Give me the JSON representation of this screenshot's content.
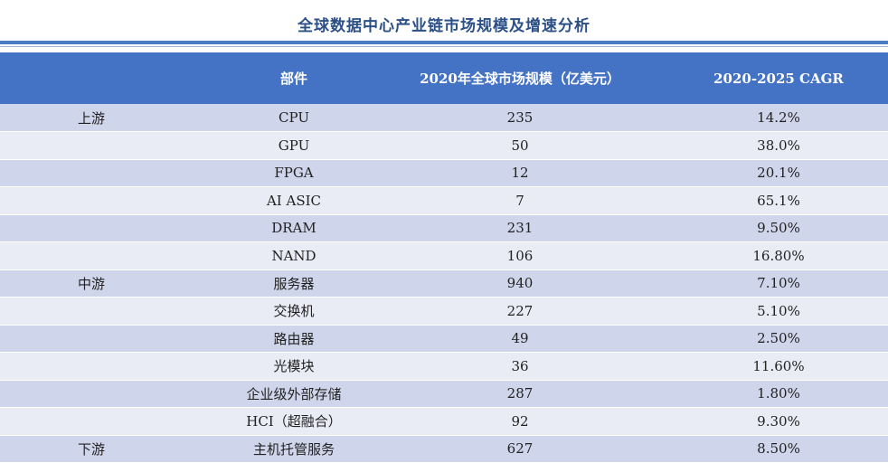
{
  "title": "全球数据中心产业链市场规模及增速分析",
  "table": {
    "headers": [
      "",
      "部件",
      "2020年全球市场规模（亿美元）",
      "2020-2025 CAGR"
    ],
    "rows": [
      {
        "stage": "上游",
        "part": "CPU",
        "size": "235",
        "cagr": "14.2%"
      },
      {
        "stage": "",
        "part": "GPU",
        "size": "50",
        "cagr": "38.0%"
      },
      {
        "stage": "",
        "part": "FPGA",
        "size": "12",
        "cagr": "20.1%"
      },
      {
        "stage": "",
        "part": "AI ASIC",
        "size": "7",
        "cagr": "65.1%"
      },
      {
        "stage": "",
        "part": "DRAM",
        "size": "231",
        "cagr": "9.50%"
      },
      {
        "stage": "",
        "part": "NAND",
        "size": "106",
        "cagr": "16.80%"
      },
      {
        "stage": "中游",
        "part": "服务器",
        "size": "940",
        "cagr": "7.10%"
      },
      {
        "stage": "",
        "part": "交换机",
        "size": "227",
        "cagr": "5.10%"
      },
      {
        "stage": "",
        "part": "路由器",
        "size": "49",
        "cagr": "2.50%"
      },
      {
        "stage": "",
        "part": "光模块",
        "size": "36",
        "cagr": "11.60%"
      },
      {
        "stage": "",
        "part": "企业级外部存储",
        "size": "287",
        "cagr": "1.80%"
      },
      {
        "stage": "",
        "part": "HCI（超融合）",
        "size": "92",
        "cagr": "9.30%"
      },
      {
        "stage": "下游",
        "part": "主机托管服务",
        "size": "627",
        "cagr": "8.50%"
      }
    ]
  }
}
